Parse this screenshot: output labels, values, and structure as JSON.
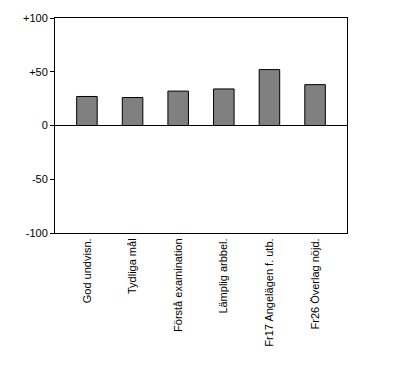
{
  "chart_data": {
    "type": "bar",
    "categories": [
      "God undvisn.",
      "Tydliga mål",
      "Förstå examination",
      "Lämplig arbbel.",
      "Fr17 Angelägen f. utb.",
      "Fr26 Överlag nöjd."
    ],
    "values": [
      27,
      26,
      32,
      34,
      52,
      38
    ],
    "color": "#808080",
    "ylim": [
      -100,
      100
    ],
    "yticks": [
      -100,
      -50,
      0,
      {
        "value": 50,
        "label": "+50"
      },
      {
        "value": 100,
        "label": "+100"
      }
    ],
    "grid": false
  }
}
